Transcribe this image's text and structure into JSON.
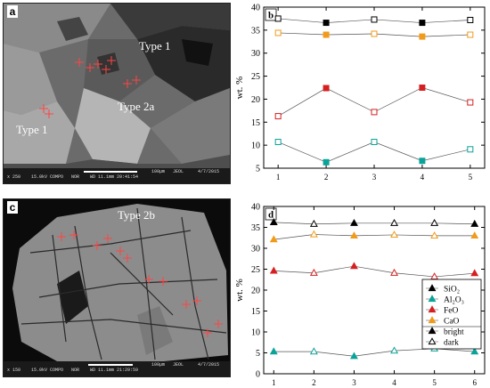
{
  "figure": {
    "panel_labels": [
      "a",
      "b",
      "c",
      "d"
    ]
  },
  "micrograph_a": {
    "label": "a",
    "annotations": [
      "Type 1",
      "Type 2a",
      "Type 1"
    ],
    "scale_label": "100µm",
    "footer": "x 250    15.0kV COMPO   NOR    WD 11.1mm 20:41:54",
    "footer_brand": "JEOL",
    "footer_date": "4/7/2015"
  },
  "micrograph_c": {
    "label": "c",
    "annotations": [
      "Type 2b"
    ],
    "scale_label": "100µm",
    "footer": "x 150    15.0kV COMPO   NOR    WD 11.1mm 21:29:59",
    "footer_brand": "JEOL",
    "footer_date": "4/7/2015"
  },
  "colors": {
    "sio2": "#000000",
    "al2o3": "#0aa39a",
    "feo": "#d62020",
    "cao": "#f29a1a"
  },
  "chart_data": [
    {
      "type": "line",
      "panel": "b",
      "x": [
        1,
        2,
        3,
        4,
        5
      ],
      "xlim": [
        0.7,
        5.3
      ],
      "ylim": [
        5,
        40
      ],
      "yticks": [
        5,
        10,
        15,
        20,
        25,
        30,
        35,
        40
      ],
      "xticks": [
        1,
        2,
        3,
        4,
        5
      ],
      "ylabel": "wt. %",
      "xlabel": "",
      "grid": false,
      "series": [
        {
          "key": "sio2",
          "values": [
            37.5,
            36.6,
            37.3,
            36.6,
            37.2
          ],
          "filled": [
            false,
            true,
            false,
            true,
            false
          ]
        },
        {
          "key": "cao",
          "values": [
            34.4,
            34.0,
            34.2,
            33.6,
            34.0
          ],
          "filled": [
            false,
            true,
            false,
            true,
            false
          ]
        },
        {
          "key": "feo",
          "values": [
            16.3,
            22.4,
            17.2,
            22.5,
            19.3
          ],
          "filled": [
            false,
            true,
            false,
            true,
            false
          ]
        },
        {
          "key": "al2o3",
          "values": [
            10.7,
            6.3,
            10.7,
            6.6,
            9.1
          ],
          "filled": [
            false,
            true,
            false,
            true,
            false
          ]
        }
      ]
    },
    {
      "type": "line",
      "panel": "d",
      "x": [
        1,
        2,
        3,
        4,
        5,
        6
      ],
      "xlim": [
        0.75,
        6.25
      ],
      "ylim": [
        0,
        40
      ],
      "yticks": [
        0,
        5,
        10,
        15,
        20,
        25,
        30,
        35,
        40
      ],
      "xticks": [
        1,
        2,
        3,
        4,
        5,
        6
      ],
      "ylabel": "wt. %",
      "xlabel": "",
      "grid": false,
      "legend_position": "center-right",
      "legend": [
        {
          "key": "sio2",
          "label": "SiO₂",
          "filled": true
        },
        {
          "key": "al2o3",
          "label": "Al₂O₃",
          "filled": true
        },
        {
          "key": "feo",
          "label": "FeO",
          "filled": true
        },
        {
          "key": "cao",
          "label": "CaO",
          "filled": true
        },
        {
          "key": "sio2",
          "label": "bright",
          "filled": true
        },
        {
          "key": "sio2",
          "label": "dark",
          "filled": false
        }
      ],
      "series": [
        {
          "key": "sio2",
          "values": [
            36.2,
            35.8,
            36.0,
            36.0,
            36.0,
            35.8
          ],
          "filled": [
            true,
            false,
            true,
            false,
            false,
            true
          ]
        },
        {
          "key": "cao",
          "values": [
            32.1,
            33.3,
            33.0,
            33.2,
            33.0,
            33.0
          ],
          "filled": [
            true,
            false,
            true,
            false,
            false,
            true
          ]
        },
        {
          "key": "feo",
          "values": [
            24.6,
            24.1,
            25.7,
            24.1,
            23.2,
            24.0
          ],
          "filled": [
            true,
            false,
            true,
            false,
            false,
            true
          ]
        },
        {
          "key": "al2o3",
          "values": [
            5.3,
            5.3,
            4.2,
            5.5,
            6.0,
            5.3
          ],
          "filled": [
            true,
            false,
            true,
            false,
            false,
            true
          ]
        }
      ]
    }
  ]
}
